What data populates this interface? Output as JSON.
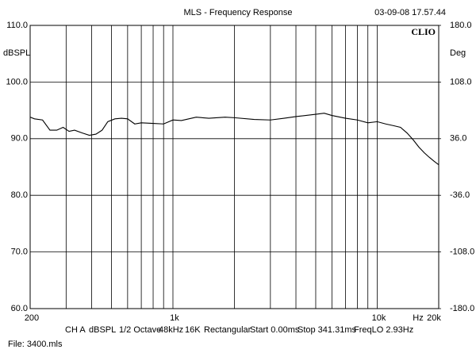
{
  "chart_data": {
    "type": "line",
    "title": "MLS - Frequency Response",
    "timestamp": "03-09-08 17.57.44",
    "brand": "CLIO",
    "y_label": "dBSPL",
    "y2_label": "Deg",
    "x_label": "Hz",
    "xscale": "log",
    "xlim": [
      200,
      20000
    ],
    "ylim": [
      60,
      110
    ],
    "y2lim": [
      -180,
      180
    ],
    "xticks": [
      200,
      {
        "value": 1000,
        "label": "1k"
      },
      {
        "value": 10000,
        "label": "10k"
      },
      {
        "value": 20000,
        "label": "20k"
      }
    ],
    "x_minor_ticks": [
      300,
      400,
      500,
      600,
      700,
      800,
      900,
      2000,
      3000,
      4000,
      5000,
      6000,
      7000,
      8000,
      9000
    ],
    "yticks": [
      {
        "value": 60,
        "label": "60.0"
      },
      {
        "value": 70,
        "label": "70.0"
      },
      {
        "value": 80,
        "label": "80.0"
      },
      {
        "value": 90,
        "label": "90.0"
      },
      {
        "value": 100,
        "label": "100.0"
      },
      {
        "value": 110,
        "label": "110.0"
      }
    ],
    "y2ticks": [
      {
        "value": -180,
        "label": "-180.0"
      },
      {
        "value": -108,
        "label": "-108.0"
      },
      {
        "value": -36,
        "label": "-36.0"
      },
      {
        "value": 36,
        "label": "36.0"
      },
      {
        "value": 108,
        "label": "108.0"
      },
      {
        "value": 180,
        "label": "180.0"
      }
    ],
    "grid": true,
    "color": "#000000",
    "x": [
      200,
      210,
      230,
      250,
      270,
      290,
      310,
      330,
      360,
      390,
      420,
      450,
      480,
      520,
      560,
      600,
      650,
      700,
      800,
      900,
      1000,
      1100,
      1300,
      1500,
      1800,
      2000,
      2500,
      3000,
      3500,
      4000,
      5000,
      5500,
      6000,
      7000,
      8000,
      9000,
      10000,
      11000,
      12000,
      13000,
      14000,
      15000,
      16000,
      17000,
      18000,
      19000,
      20000
    ],
    "values": [
      93.8,
      93.5,
      93.3,
      91.5,
      91.5,
      92.0,
      91.3,
      91.5,
      91.0,
      90.6,
      90.8,
      91.5,
      93.0,
      93.5,
      93.6,
      93.5,
      92.6,
      92.8,
      92.7,
      92.6,
      93.3,
      93.2,
      93.8,
      93.6,
      93.8,
      93.7,
      93.4,
      93.3,
      93.6,
      93.9,
      94.3,
      94.5,
      94.1,
      93.6,
      93.3,
      92.8,
      93.0,
      92.6,
      92.3,
      92.0,
      91.0,
      89.8,
      88.5,
      87.5,
      86.7,
      86.0,
      85.4
    ],
    "footer": [
      "CH A",
      "dBSPL",
      "1/2 Octave",
      "48kHz",
      "16K",
      "Rectangular",
      "Start 0.00ms",
      "Stop 341.31ms",
      "FreqLO 2.93Hz"
    ],
    "file": "File: 3400.mls"
  }
}
